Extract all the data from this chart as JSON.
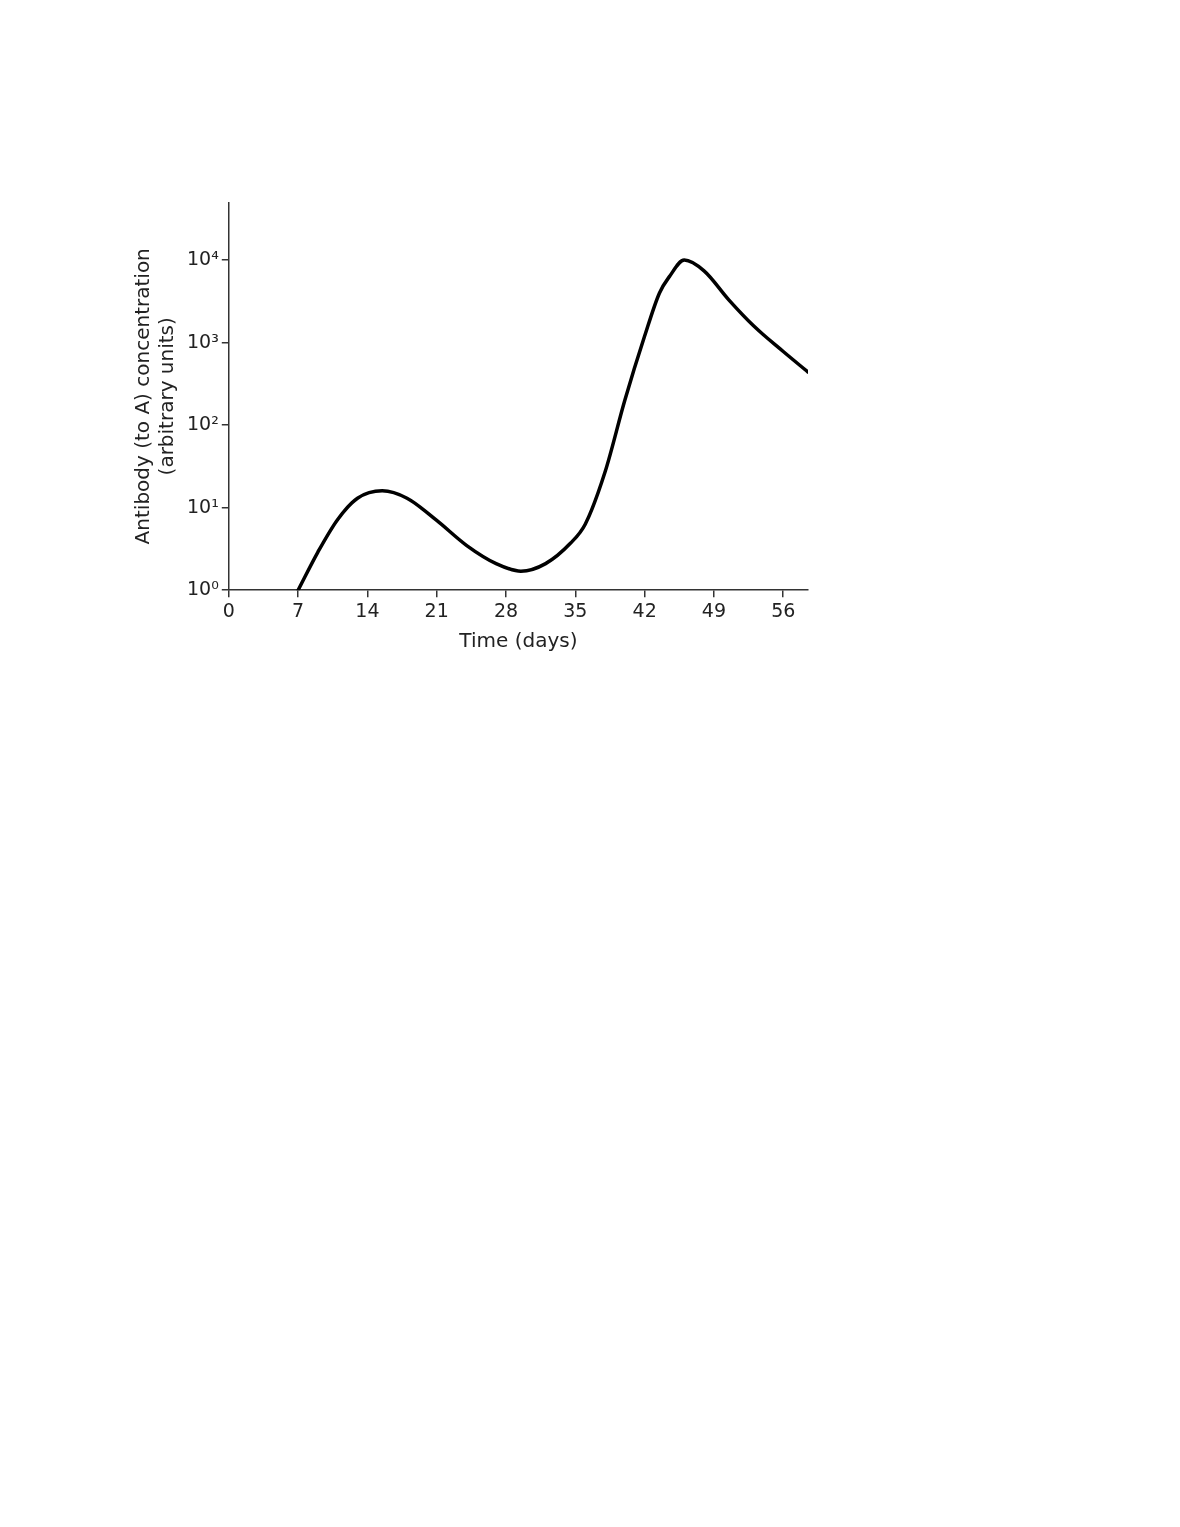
{
  "chart_data": {
    "type": "line",
    "xlabel": "Time (days)",
    "ylabel": "Antibody (to A) concentration\n(arbitrary units)",
    "log": "y",
    "grid": false,
    "xlim": [
      0,
      58.5
    ],
    "xticks": [
      0,
      7,
      14,
      21,
      28,
      35,
      42,
      49,
      56
    ],
    "ylim": [
      1,
      50000
    ],
    "yticks": [
      {
        "value": 1,
        "label": "10⁰"
      },
      {
        "value": 10,
        "label": "10¹"
      },
      {
        "value": 100,
        "label": "10²"
      },
      {
        "value": 1000,
        "label": "10³"
      },
      {
        "value": 10000,
        "label": "10⁴"
      }
    ],
    "x": [
      7,
      9,
      11,
      13,
      15.5,
      18,
      21,
      24,
      27,
      29.5,
      32,
      34.5,
      36,
      38,
      40,
      42,
      43.5,
      44.5,
      46,
      48,
      50.5,
      53,
      56,
      58.5
    ],
    "series": [
      {
        "color": "#000000",
        "values": [
          1,
          2.9,
          7.2,
          13,
          16,
          13,
          7,
          3.5,
          2.1,
          1.7,
          2.1,
          3.7,
          6.3,
          27,
          200,
          1200,
          4000,
          6300,
          10000,
          7400,
          3300,
          1600,
          780,
          440
        ]
      }
    ]
  }
}
